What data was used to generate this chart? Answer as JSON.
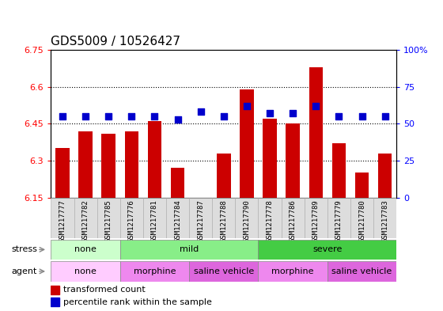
{
  "title": "GDS5009 / 10526427",
  "samples": [
    "GSM1217777",
    "GSM1217782",
    "GSM1217785",
    "GSM1217776",
    "GSM1217781",
    "GSM1217784",
    "GSM1217787",
    "GSM1217788",
    "GSM1217790",
    "GSM1217778",
    "GSM1217786",
    "GSM1217789",
    "GSM1217779",
    "GSM1217780",
    "GSM1217783"
  ],
  "red_values": [
    6.35,
    6.42,
    6.41,
    6.42,
    6.46,
    6.27,
    6.15,
    6.33,
    6.59,
    6.47,
    6.45,
    6.68,
    6.37,
    6.25,
    6.33
  ],
  "blue_values": [
    55,
    55,
    55,
    55,
    55,
    53,
    58,
    55,
    62,
    57,
    57,
    62,
    55,
    55,
    55
  ],
  "ymin": 6.15,
  "ymax": 6.75,
  "yticks": [
    6.15,
    6.3,
    6.45,
    6.6,
    6.75
  ],
  "ytick_labels": [
    "6.15",
    "6.3",
    "6.45",
    "6.6",
    "6.75"
  ],
  "right_yticks": [
    0,
    25,
    50,
    75,
    100
  ],
  "right_ytick_labels": [
    "0",
    "25",
    "50",
    "75",
    "100%"
  ],
  "hlines": [
    6.3,
    6.45,
    6.6
  ],
  "bar_color": "#cc0000",
  "dot_color": "#0000cc",
  "bar_baseline": 6.15,
  "stress_groups": [
    {
      "label": "none",
      "start": 0,
      "end": 3,
      "color": "#ccffcc"
    },
    {
      "label": "mild",
      "start": 3,
      "end": 9,
      "color": "#88ee88"
    },
    {
      "label": "severe",
      "start": 9,
      "end": 15,
      "color": "#44cc44"
    }
  ],
  "agent_groups": [
    {
      "label": "none",
      "start": 0,
      "end": 3,
      "color": "#ffccff"
    },
    {
      "label": "morphine",
      "start": 3,
      "end": 6,
      "color": "#ee88ee"
    },
    {
      "label": "saline vehicle",
      "start": 6,
      "end": 9,
      "color": "#cc44cc"
    },
    {
      "label": "morphine",
      "start": 9,
      "end": 12,
      "color": "#ee88ee"
    },
    {
      "label": "saline vehicle",
      "start": 12,
      "end": 15,
      "color": "#cc44cc"
    }
  ],
  "legend_red": "transformed count",
  "legend_blue": "percentile rank within the sample",
  "xlabel_stress": "stress",
  "xlabel_agent": "agent",
  "title_fontsize": 11,
  "tick_fontsize": 8,
  "label_fontsize": 8,
  "bar_width": 0.6,
  "dot_size": 30,
  "background_color": "#ffffff"
}
